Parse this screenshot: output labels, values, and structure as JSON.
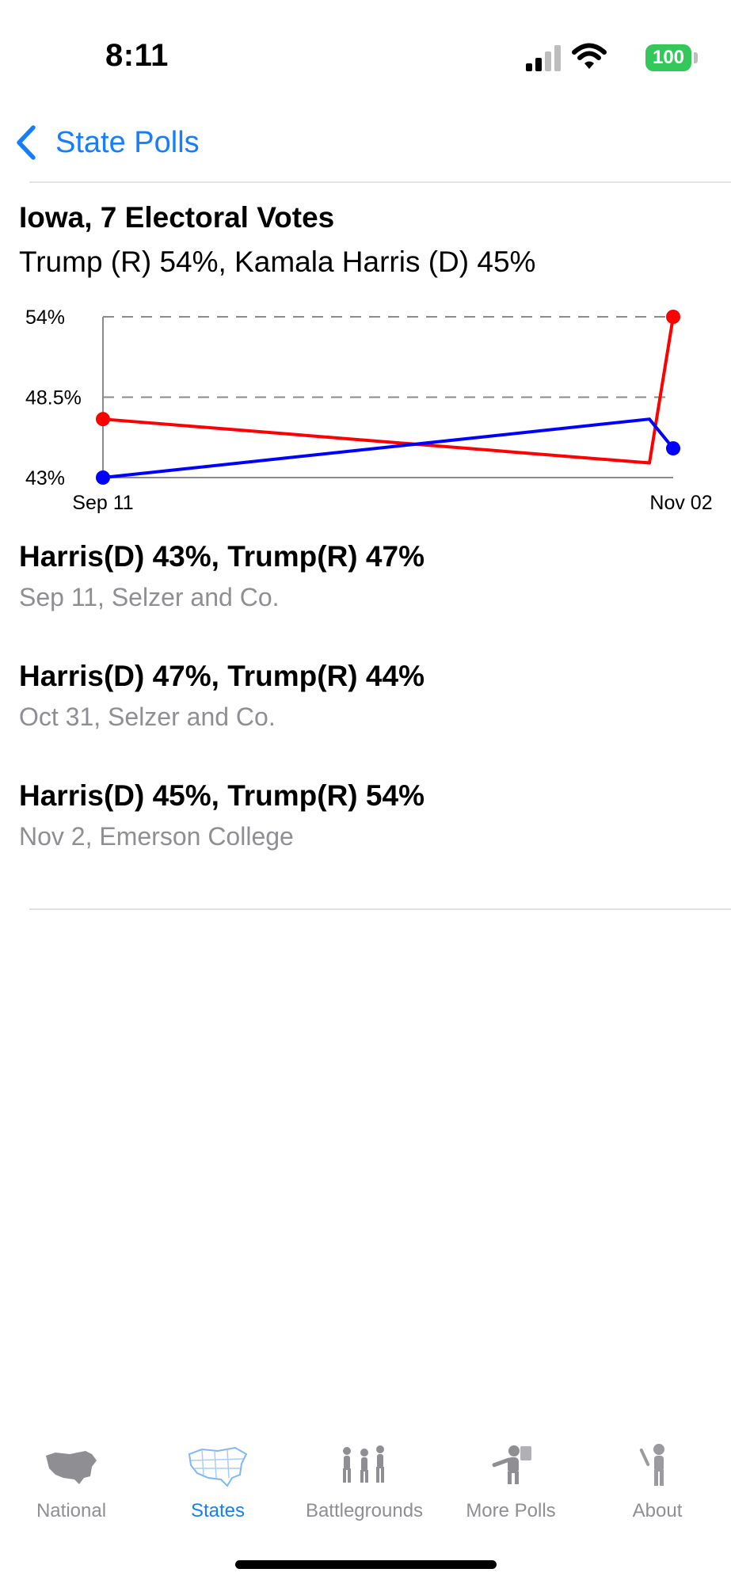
{
  "status": {
    "time": "8:11",
    "battery": "100"
  },
  "nav": {
    "back_label": "State Polls"
  },
  "state": {
    "title": "Iowa, 7 Electoral Votes",
    "summary": "Trump (R) 54%, Kamala Harris (D) 45%"
  },
  "chart_data": {
    "type": "line",
    "x": [
      "Sep 11",
      "Oct 31",
      "Nov 02"
    ],
    "x_tick_labels": [
      "Sep 11",
      "Nov 02"
    ],
    "y_tick_labels": [
      "54%",
      "48.5%",
      "43%"
    ],
    "ylim": [
      43,
      54
    ],
    "y_ticks": [
      43,
      48.5,
      54
    ],
    "series": [
      {
        "color": "#ff0000",
        "values": [
          47,
          44,
          54
        ]
      },
      {
        "color": "#0000ff",
        "values": [
          43,
          47,
          45
        ]
      }
    ],
    "grid": "dashed horizontal"
  },
  "polls": [
    {
      "result": "Harris(D) 43%, Trump(R) 47%",
      "meta": "Sep 11, Selzer and Co."
    },
    {
      "result": "Harris(D) 47%, Trump(R) 44%",
      "meta": "Oct 31, Selzer and Co."
    },
    {
      "result": "Harris(D) 45%, Trump(R) 54%",
      "meta": "Nov 2, Emerson College"
    }
  ],
  "tabs": [
    {
      "label": "National",
      "icon": "us-map-icon",
      "active": false
    },
    {
      "label": "States",
      "icon": "states-map-icon",
      "active": true
    },
    {
      "label": "Battlegrounds",
      "icon": "battlegrounds-icon",
      "active": false
    },
    {
      "label": "More Polls",
      "icon": "more-polls-icon",
      "active": false
    },
    {
      "label": "About",
      "icon": "about-icon",
      "active": false
    }
  ],
  "colors": {
    "accent": "#147efb",
    "republican": "#ff0000",
    "democrat": "#0000ff"
  }
}
